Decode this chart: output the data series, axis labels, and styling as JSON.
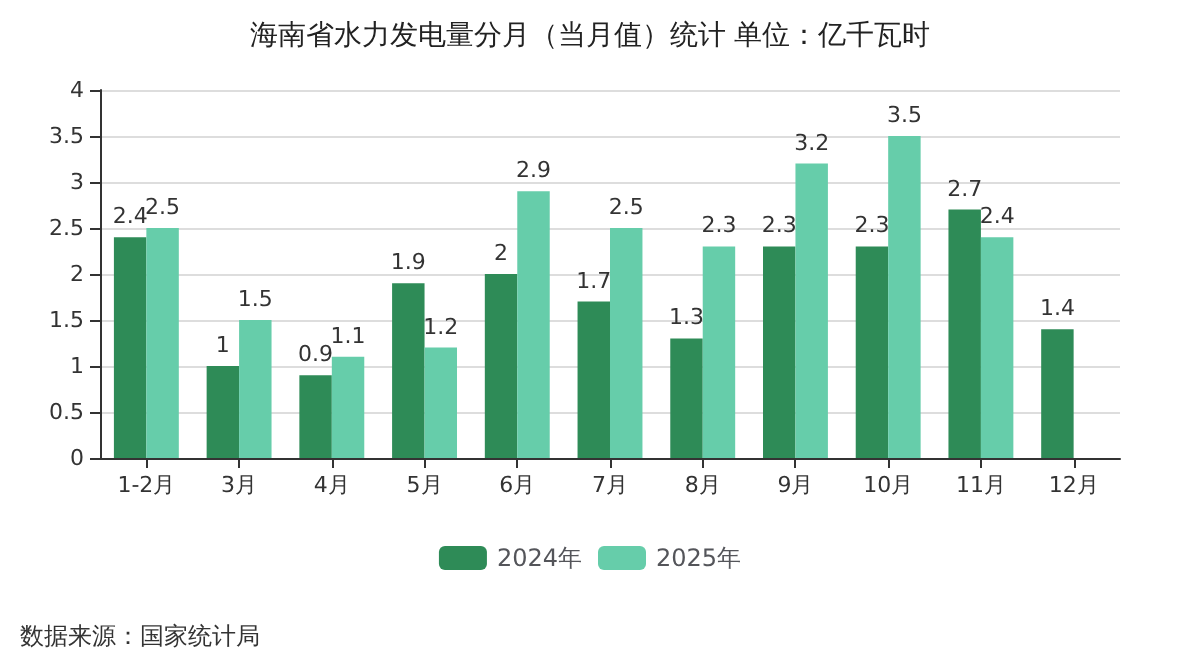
{
  "chart_data": {
    "type": "bar",
    "title": "海南省水力发电量分月（当月值）统计 单位：亿千瓦时",
    "categories": [
      "1-2月",
      "3月",
      "4月",
      "5月",
      "6月",
      "7月",
      "8月",
      "9月",
      "10月",
      "11月",
      "12月"
    ],
    "series": [
      {
        "name": "2024年",
        "color": "#2e8b57",
        "values": [
          2.4,
          1,
          0.9,
          1.9,
          2,
          1.7,
          1.3,
          2.3,
          2.3,
          2.7,
          1.4
        ]
      },
      {
        "name": "2025年",
        "color": "#66cdaa",
        "values": [
          2.5,
          1.5,
          1.1,
          1.2,
          2.9,
          2.5,
          2.3,
          3.2,
          3.5,
          2.4,
          null
        ]
      }
    ],
    "ylim": [
      0,
      4
    ],
    "yticks": [
      0,
      0.5,
      1,
      1.5,
      2,
      2.5,
      3,
      3.5,
      4
    ],
    "grid": "y",
    "legend": "bottom",
    "data_labels": true,
    "annotations": [
      "数据来源：国家统计局"
    ]
  }
}
